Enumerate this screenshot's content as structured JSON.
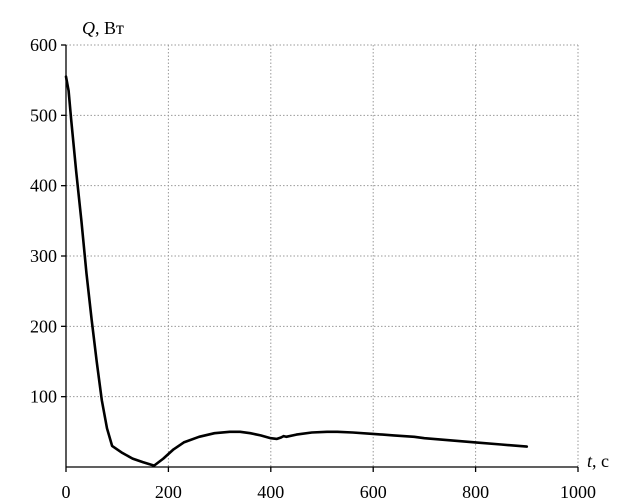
{
  "chart_data": {
    "type": "line",
    "title": "",
    "ylabel_var": "Q",
    "ylabel_unit": ", Вт",
    "xlabel_var": "t",
    "xlabel_unit": ", с",
    "xlim": [
      0,
      1000
    ],
    "ylim": [
      0,
      600
    ],
    "x_ticks": [
      0,
      200,
      400,
      600,
      800,
      1000
    ],
    "y_ticks": [
      100,
      200,
      300,
      400,
      500,
      600
    ],
    "grid": true,
    "series": [
      {
        "color": "#000000",
        "x": [
          0,
          5,
          10,
          20,
          30,
          40,
          50,
          60,
          70,
          80,
          90,
          110,
          130,
          150,
          172,
          190,
          210,
          230,
          260,
          290,
          320,
          340,
          360,
          380,
          400,
          412,
          420,
          425,
          430,
          450,
          480,
          510,
          530,
          560,
          600,
          640,
          680,
          700,
          750,
          800,
          850,
          900
        ],
        "y": [
          555,
          535,
          495,
          420,
          350,
          275,
          210,
          150,
          95,
          55,
          30,
          20,
          12,
          7,
          2,
          12,
          25,
          35,
          43,
          48,
          50,
          50,
          48,
          45,
          41,
          40,
          42,
          44,
          43,
          46,
          49,
          50,
          50,
          49,
          47,
          45,
          43,
          41,
          38,
          35,
          32,
          29
        ]
      }
    ]
  }
}
